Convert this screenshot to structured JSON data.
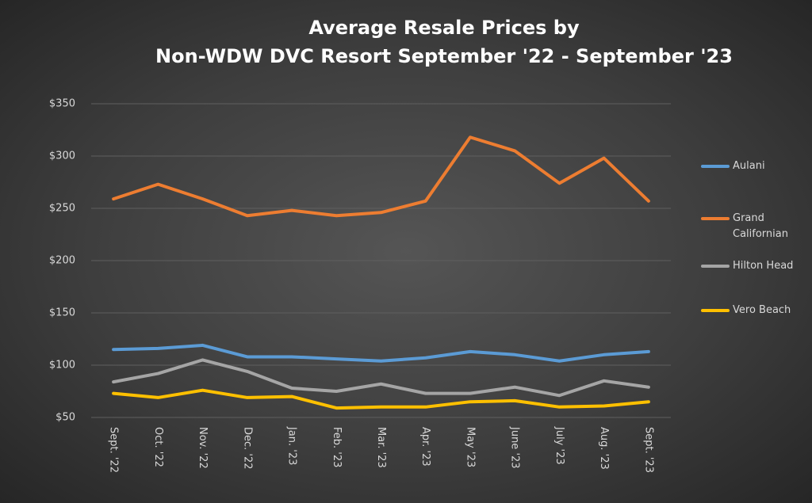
{
  "chart_data": {
    "type": "line",
    "title": [
      "Average Resale Prices by",
      "Non-WDW DVC Resort September '22 - September '23"
    ],
    "categories": [
      "Sept. '22",
      "Oct. '22",
      "Nov. '22",
      "Dec. '22",
      "Jan. '23",
      "Feb. '23",
      "Mar. '23",
      "Apr. '23",
      "May '23",
      "June '23",
      "July '23",
      "Aug. '23",
      "Sept. '23"
    ],
    "series": [
      {
        "name": "Aulani",
        "color": "#5b9bd5",
        "values": [
          115,
          116,
          119,
          108,
          108,
          106,
          104,
          107,
          113,
          110,
          104,
          110,
          113
        ]
      },
      {
        "name": "Grand Californian",
        "color": "#ed7d31",
        "values": [
          259,
          273,
          259,
          243,
          248,
          243,
          246,
          257,
          318,
          305,
          274,
          298,
          257
        ]
      },
      {
        "name": "Hilton Head",
        "color": "#a5a5a5",
        "values": [
          84,
          92,
          105,
          94,
          78,
          75,
          82,
          73,
          73,
          79,
          71,
          85,
          79
        ]
      },
      {
        "name": "Vero Beach",
        "color": "#ffc000",
        "values": [
          73,
          69,
          76,
          69,
          70,
          59,
          60,
          60,
          65,
          66,
          60,
          61,
          65
        ]
      }
    ],
    "ylim": [
      50,
      350
    ],
    "yticks": [
      {
        "value": 50,
        "label": "$50"
      },
      {
        "value": 100,
        "label": "$100"
      },
      {
        "value": 150,
        "label": "$150"
      },
      {
        "value": 200,
        "label": "$200"
      },
      {
        "value": 250,
        "label": "$250"
      },
      {
        "value": 300,
        "label": "$300"
      },
      {
        "value": 350,
        "label": "$350"
      }
    ],
    "grid": true,
    "legend": "right"
  }
}
